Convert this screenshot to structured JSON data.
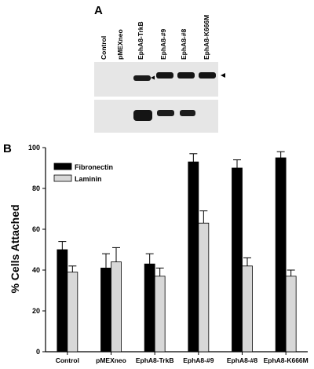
{
  "panel_a": {
    "label": "A",
    "lanes": [
      "Control",
      "pMEXneo",
      "EphA8-TrkB",
      "EphA8-#9",
      "EphA8-#8",
      "EphA8-K666M"
    ]
  },
  "panel_b": {
    "label": "B"
  },
  "chart_data": {
    "type": "bar",
    "categories": [
      "Control",
      "pMEXneo",
      "EphA8-TrkB",
      "EphA8-#9",
      "EphA8-#8",
      "EphA8-K666M"
    ],
    "series": [
      {
        "name": "Fibronectin",
        "color": "#000000",
        "values": [
          50,
          41,
          43,
          93,
          90,
          95
        ],
        "errors": [
          4,
          7,
          5,
          4,
          4,
          3
        ]
      },
      {
        "name": "Laminin",
        "color": "#d8d8d8",
        "values": [
          39,
          44,
          37,
          63,
          42,
          37
        ],
        "errors": [
          3,
          7,
          4,
          6,
          4,
          3
        ]
      }
    ],
    "ylabel": "% Cells Attached",
    "xlabel": "",
    "ylim": [
      0,
      100
    ],
    "yticks": [
      0,
      20,
      40,
      60,
      80,
      100
    ],
    "legend_position": "top-left",
    "grid": false
  }
}
